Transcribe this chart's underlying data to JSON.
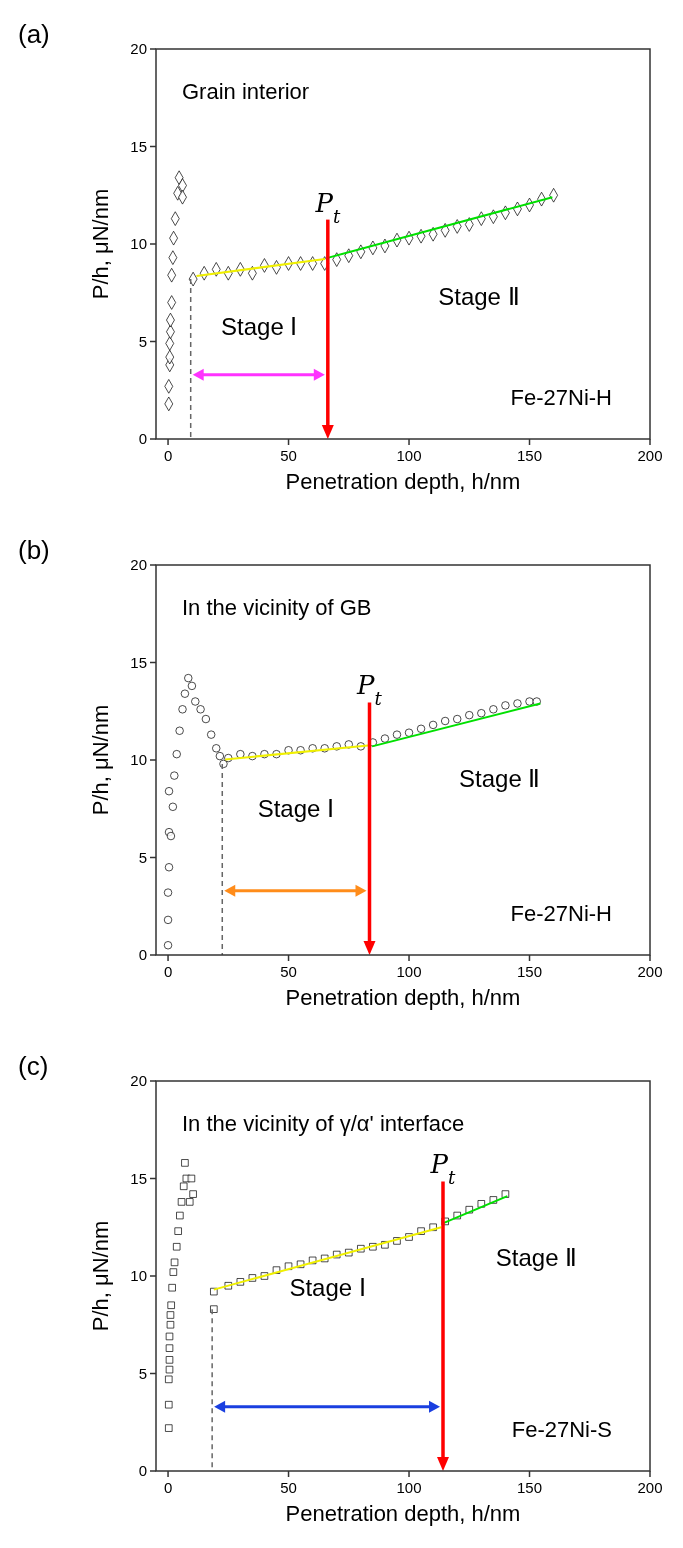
{
  "chart_data": [
    {
      "type": "scatter",
      "title": "Grain interior",
      "xlabel": "Penetration depth, h/nm",
      "ylabel": "P/h, μN/nm",
      "xlim": [
        -5,
        200
      ],
      "ylim": [
        0,
        20
      ],
      "xticks": [
        0,
        50,
        100,
        150,
        200
      ],
      "yticks": [
        0,
        5,
        10,
        15,
        20
      ],
      "grid": false,
      "annotations": [
        "(a)",
        "Fe-27Ni-H",
        "Stage Ⅰ",
        "Stage Ⅱ"
      ],
      "ref_lines": [
        {
          "axis": "x",
          "value": 9.4,
          "label": null,
          "color": "#666666",
          "line_style": "dashed"
        },
        {
          "axis": "x",
          "value": 66.3,
          "label": "P$_{t}$",
          "color": "#ff0000",
          "line_style": "solid"
        }
      ],
      "series": [
        {
          "type": "scatter",
          "marker": "diamond",
          "color": "#000000",
          "x": [
            0.3,
            0.3,
            0.7,
            0.7,
            0.7,
            1,
            1,
            1.5,
            1.5,
            2,
            2.3,
            3,
            4,
            4.6,
            6,
            6,
            10.4,
            15,
            20,
            25,
            30,
            35,
            40,
            45,
            50,
            55,
            60,
            65,
            70,
            75,
            80,
            85,
            90,
            95,
            100,
            105,
            110,
            115,
            120,
            125,
            130,
            135,
            140,
            145,
            150,
            155,
            160
          ],
          "values": [
            1.8,
            2.7,
            3.8,
            4.2,
            4.9,
            5.5,
            6.1,
            7,
            8.4,
            9.3,
            10.3,
            11.3,
            12.6,
            13.4,
            13,
            12.4,
            8.2,
            8.5,
            8.7,
            8.5,
            8.7,
            8.5,
            8.9,
            8.8,
            9,
            9,
            9,
            9,
            9.2,
            9.4,
            9.6,
            9.8,
            9.9,
            10.2,
            10.3,
            10.4,
            10.5,
            10.7,
            10.9,
            11,
            11.3,
            11.4,
            11.6,
            11.8,
            12,
            12.3,
            12.5
          ]
        },
        {
          "type": "line",
          "color": "#f0f000",
          "x": [
            11.8,
            65.1
          ],
          "values": [
            8.36,
            9.23
          ]
        },
        {
          "type": "line",
          "color": "#00e000",
          "x": [
            66.6,
            159.5
          ],
          "values": [
            9.3,
            12.4
          ]
        }
      ]
    },
    {
      "type": "scatter",
      "title": "In the vicinity of GB",
      "xlabel": "Penetration depth, h/nm",
      "ylabel": "P/h, μN/nm",
      "xlim": [
        -5,
        200
      ],
      "ylim": [
        0,
        20
      ],
      "xticks": [
        0,
        50,
        100,
        150,
        200
      ],
      "yticks": [
        0,
        5,
        10,
        15,
        20
      ],
      "grid": false,
      "annotations": [
        "(b)",
        "Fe-27Ni-H",
        "Stage Ⅰ",
        "Stage Ⅱ"
      ],
      "ref_lines": [
        {
          "axis": "x",
          "value": 22.5,
          "label": null,
          "color": "#666666",
          "line_style": "dashed"
        },
        {
          "axis": "x",
          "value": 83.6,
          "label": "P$_{t}$",
          "color": "#ff0000",
          "line_style": "solid"
        }
      ],
      "series": [
        {
          "type": "scatter",
          "marker": "circle",
          "color": "#000000",
          "x": [
            0,
            0,
            0,
            0.4,
            0.4,
            0.4,
            1.2,
            2,
            2.6,
            3.6,
            4.8,
            6,
            7,
            8.4,
            9.9,
            11.3,
            13.5,
            15.7,
            17.9,
            20,
            21.5,
            23,
            25,
            30,
            35,
            40,
            45,
            50,
            55,
            60,
            65,
            70,
            75,
            80,
            85,
            90,
            95,
            100,
            105,
            110,
            115,
            120,
            125,
            130,
            135,
            140,
            145,
            150,
            153
          ],
          "values": [
            0.5,
            1.8,
            3.2,
            4.5,
            6.3,
            8.4,
            6.1,
            7.6,
            9.2,
            10.3,
            11.5,
            12.6,
            13.4,
            14.2,
            13.8,
            13,
            12.6,
            12.1,
            11.3,
            10.6,
            10.2,
            9.8,
            10.1,
            10.3,
            10.2,
            10.3,
            10.3,
            10.5,
            10.5,
            10.6,
            10.6,
            10.7,
            10.8,
            10.7,
            10.9,
            11.1,
            11.3,
            11.4,
            11.6,
            11.8,
            12,
            12.1,
            12.3,
            12.4,
            12.6,
            12.8,
            12.9,
            13,
            13
          ]
        },
        {
          "type": "line",
          "color": "#f0f000",
          "x": [
            23.7,
            83
          ],
          "values": [
            10.03,
            10.74
          ]
        },
        {
          "type": "line",
          "color": "#00e000",
          "x": [
            84.7,
            154.5
          ],
          "values": [
            10.7,
            12.9
          ]
        }
      ]
    },
    {
      "type": "scatter",
      "title": "In the vicinity of γ/α' interface",
      "xlabel": "Penetration depth, h/nm",
      "ylabel": "P/h, μN/nm",
      "xlim": [
        -5,
        200
      ],
      "ylim": [
        0,
        20
      ],
      "xticks": [
        0,
        50,
        100,
        150,
        200
      ],
      "yticks": [
        0,
        5,
        10,
        15,
        20
      ],
      "grid": false,
      "annotations": [
        "(c)",
        "Fe-27Ni-S",
        "Stage Ⅰ",
        "Stage Ⅱ"
      ],
      "ref_lines": [
        {
          "axis": "x",
          "value": 18.3,
          "label": null,
          "color": "#666666",
          "line_style": "dashed"
        },
        {
          "axis": "x",
          "value": 114.1,
          "label": "P$_{t}$",
          "color": "#ff0000",
          "line_style": "solid"
        }
      ],
      "series": [
        {
          "type": "scatter",
          "marker": "square",
          "color": "#000000",
          "x": [
            0.3,
            0.3,
            0.3,
            0.6,
            0.6,
            0.6,
            0.6,
            1,
            1,
            1.3,
            1.7,
            2.2,
            2.7,
            3.6,
            4.2,
            4.9,
            5.6,
            6.5,
            7,
            7.6,
            9,
            9.7,
            10.4,
            19,
            19,
            25,
            30,
            35,
            40,
            45,
            50,
            55,
            60,
            65,
            70,
            75,
            80,
            85,
            90,
            95,
            100,
            105,
            110,
            115,
            120,
            125,
            130,
            135,
            140
          ],
          "values": [
            2.2,
            3.4,
            4.7,
            5.2,
            5.7,
            6.3,
            6.9,
            7.5,
            8,
            8.5,
            9.4,
            10.2,
            10.7,
            11.5,
            12.3,
            13.1,
            13.8,
            14.6,
            15.8,
            15,
            13.8,
            15,
            14.2,
            8.3,
            9.2,
            9.5,
            9.7,
            9.9,
            10,
            10.3,
            10.5,
            10.6,
            10.8,
            10.9,
            11.1,
            11.2,
            11.4,
            11.5,
            11.6,
            11.8,
            12,
            12.3,
            12.5,
            12.8,
            13.1,
            13.4,
            13.7,
            13.9,
            14.2
          ]
        },
        {
          "type": "line",
          "color": "#f0f000",
          "x": [
            19,
            113.4
          ],
          "values": [
            9.3,
            12.5
          ]
        },
        {
          "type": "line",
          "color": "#00e000",
          "x": [
            114,
            140.8
          ],
          "values": [
            12.7,
            14.1
          ]
        }
      ]
    }
  ]
}
